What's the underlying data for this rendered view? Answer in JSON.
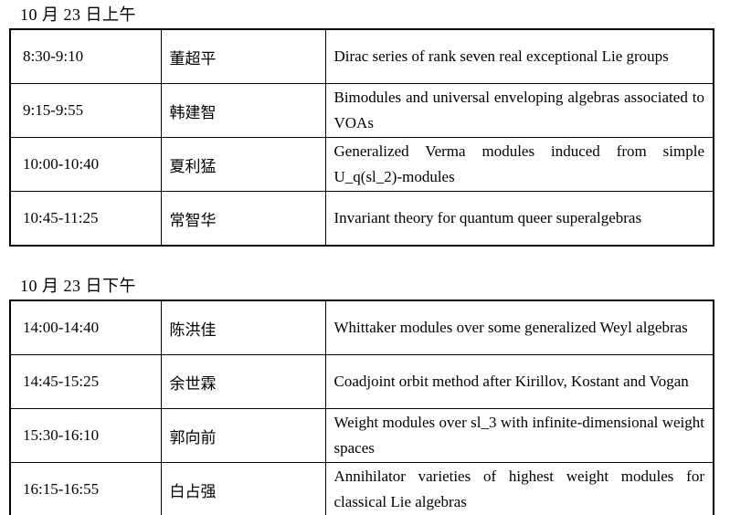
{
  "sessions": [
    {
      "heading": "10 月 23 日上午",
      "rows": [
        {
          "time": "8:30-9:10",
          "speaker": "董超平",
          "title": "Dirac series of rank seven real exceptional Lie groups"
        },
        {
          "time": "9:15-9:55",
          "speaker": "韩建智",
          "title": "Bimodules and universal enveloping algebras associated to VOAs"
        },
        {
          "time": "10:00-10:40",
          "speaker": "夏利猛",
          "title": "Generalized Verma modules induced from simple U_q(sl_2)-modules"
        },
        {
          "time": "10:45-11:25",
          "speaker": "常智华",
          "title": "Invariant theory for quantum queer superalgebras"
        }
      ]
    },
    {
      "heading": "10 月 23 日下午",
      "rows": [
        {
          "time": "14:00-14:40",
          "speaker": "陈洪佳",
          "title": "Whittaker modules over some generalized Weyl algebras"
        },
        {
          "time": "14:45-15:25",
          "speaker": "余世霖",
          "title": "Coadjoint orbit method after Kirillov, Kostant and Vogan"
        },
        {
          "time": "15:30-16:10",
          "speaker": "郭向前",
          "title": "Weight modules over sl_3 with infinite-dimensional weight spaces"
        },
        {
          "time": "16:15-16:55",
          "speaker": "白占强",
          "title": "Annihilator varieties of highest weight modules for classical Lie algebras"
        }
      ]
    }
  ]
}
